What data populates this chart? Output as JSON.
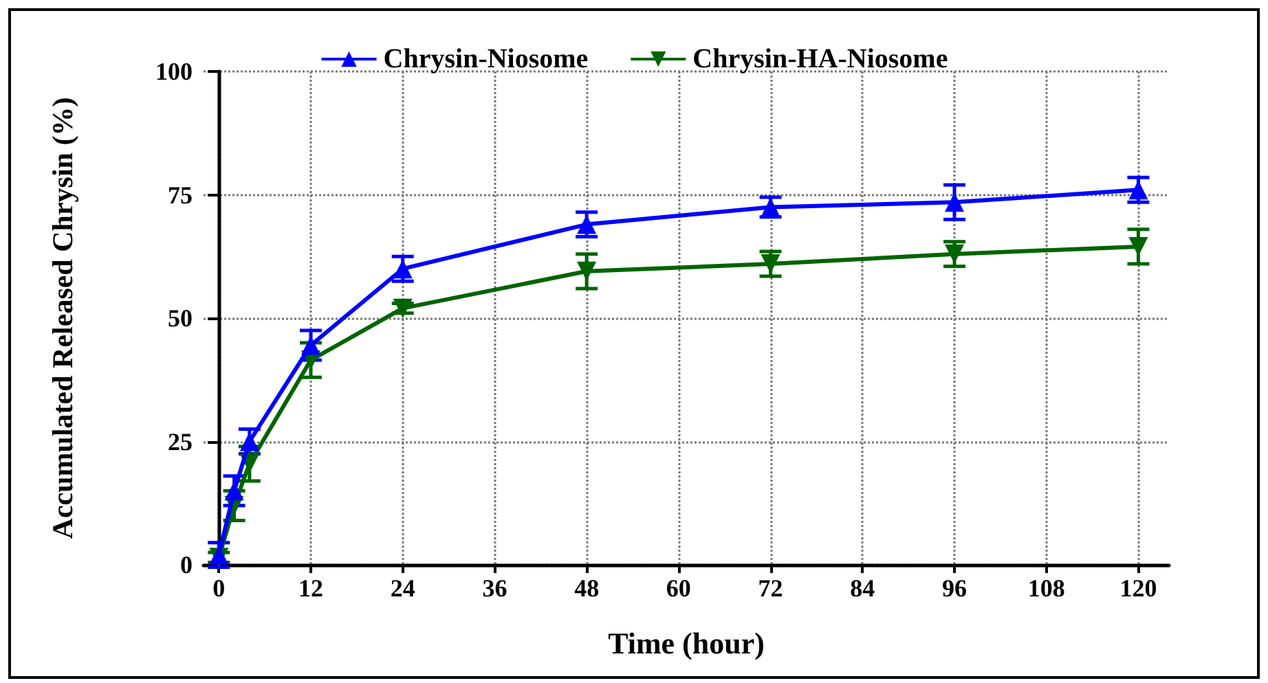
{
  "chart_data": {
    "type": "line",
    "xlabel": "Time (hour)",
    "ylabel": "Accumulated Released Chrysin (%)",
    "x": [
      0,
      2,
      4,
      12,
      24,
      48,
      72,
      96,
      120
    ],
    "series": [
      {
        "name": "Chrysin-Niosome",
        "color": "#0000ff",
        "marker": "triangle",
        "values": [
          2,
          15,
          25,
          44.5,
          60,
          69,
          72.5,
          73.5,
          76
        ],
        "errors": [
          2.5,
          3,
          2.5,
          3,
          2.5,
          2.5,
          2,
          3.5,
          2.5
        ]
      },
      {
        "name": "Chrysin-HA-Niosome",
        "color": "#006400",
        "marker": "triangle-down",
        "values": [
          1.5,
          12,
          20.5,
          41.5,
          52,
          59.5,
          61,
          63,
          64.5
        ],
        "errors": [
          1,
          3,
          3.5,
          3.5,
          1,
          3.5,
          2.5,
          2.5,
          3.5
        ]
      }
    ],
    "xlim": [
      -2,
      124
    ],
    "xticks": [
      0,
      12,
      24,
      36,
      48,
      60,
      72,
      84,
      96,
      108,
      120
    ],
    "ylim": [
      0,
      100
    ],
    "yticks": [
      0,
      25,
      50,
      75,
      100
    ],
    "grid": true,
    "legend": "top",
    "line_style": "solid"
  }
}
